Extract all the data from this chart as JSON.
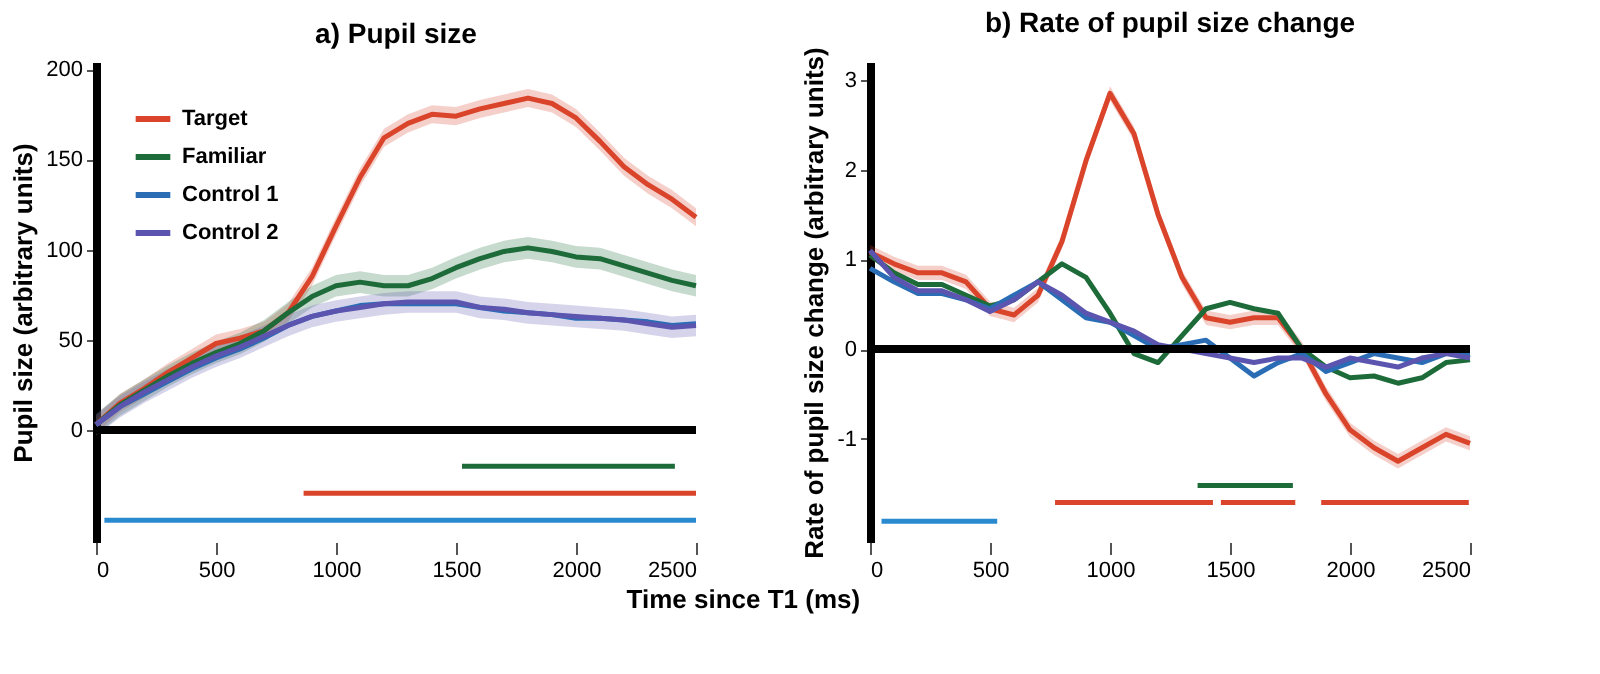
{
  "chart_data": [
    {
      "type": "line",
      "title": "a) Pupil size",
      "xlabel": "Time since T1 (ms)",
      "ylabel": "Pupil size (arbitrary units)",
      "x": [
        0,
        100,
        200,
        300,
        400,
        500,
        600,
        700,
        800,
        900,
        1000,
        1100,
        1200,
        1300,
        1400,
        1500,
        1600,
        1700,
        1800,
        1900,
        2000,
        2100,
        2200,
        2300,
        2400,
        2500
      ],
      "series": [
        {
          "name": "Target",
          "color": "#d9442b",
          "values": [
            3,
            15,
            23,
            32,
            40,
            48,
            51,
            55,
            65,
            85,
            113,
            140,
            162,
            170,
            175,
            174,
            178,
            181,
            184,
            181,
            173,
            160,
            146,
            136,
            128,
            118
          ],
          "lower": [
            -2,
            10,
            18,
            27,
            35,
            43,
            46,
            50,
            60,
            80,
            108,
            135,
            157,
            165,
            170,
            169,
            173,
            176,
            179,
            176,
            168,
            155,
            141,
            131,
            123,
            113
          ],
          "upper": [
            8,
            20,
            28,
            37,
            45,
            53,
            56,
            60,
            70,
            90,
            118,
            145,
            167,
            175,
            180,
            179,
            183,
            186,
            189,
            186,
            178,
            165,
            151,
            141,
            133,
            123
          ]
        },
        {
          "name": "Familiar",
          "color": "#1e6b3a",
          "values": [
            3,
            14,
            22,
            30,
            37,
            43,
            48,
            55,
            65,
            74,
            80,
            82,
            80,
            80,
            84,
            90,
            95,
            99,
            101,
            99,
            96,
            95,
            91,
            87,
            83,
            80
          ],
          "lower": [
            -3,
            8,
            16,
            24,
            31,
            37,
            42,
            49,
            59,
            68,
            74,
            76,
            74,
            74,
            78,
            84,
            89,
            93,
            95,
            93,
            90,
            89,
            85,
            81,
            77,
            74
          ],
          "upper": [
            9,
            20,
            28,
            36,
            43,
            49,
            54,
            61,
            71,
            80,
            86,
            88,
            86,
            86,
            90,
            96,
            101,
            105,
            107,
            105,
            102,
            101,
            97,
            93,
            89,
            86
          ]
        },
        {
          "name": "Control 1",
          "color": "#2a6db5",
          "values": [
            3,
            13,
            20,
            27,
            34,
            40,
            45,
            51,
            58,
            63,
            66,
            69,
            70,
            70,
            70,
            70,
            68,
            66,
            65,
            64,
            62,
            62,
            61,
            60,
            58,
            59
          ]
        },
        {
          "name": "Control 2",
          "color": "#5b55b0",
          "values": [
            3,
            13,
            21,
            28,
            35,
            41,
            46,
            52,
            58,
            63,
            66,
            68,
            70,
            71,
            71,
            71,
            68,
            67,
            65,
            64,
            63,
            62,
            61,
            59,
            57,
            58
          ],
          "lower": [
            -3,
            7,
            15,
            22,
            29,
            35,
            40,
            46,
            52,
            57,
            60,
            62,
            64,
            65,
            65,
            65,
            62,
            61,
            59,
            58,
            57,
            56,
            55,
            53,
            51,
            52
          ],
          "upper": [
            9,
            19,
            27,
            34,
            41,
            47,
            52,
            58,
            64,
            69,
            72,
            74,
            76,
            77,
            77,
            77,
            74,
            73,
            71,
            70,
            69,
            68,
            67,
            65,
            63,
            64
          ]
        },
        {
          "type": "line",
          "color": "#1e6b3a",
          "x": [
            1525,
            2412
          ],
          "values": [
            -20,
            -20
          ]
        },
        {
          "type": "line",
          "color": "#d9442b",
          "x": [
            865,
            2500
          ],
          "values": [
            -35,
            -35
          ]
        },
        {
          "type": "line",
          "color": "#2a8ad0",
          "x": [
            35,
            2500
          ],
          "values": [
            -50,
            -50
          ]
        }
      ],
      "xlim": [
        0,
        2500
      ],
      "xticks": [
        0,
        500,
        1000,
        1500,
        2000,
        2500
      ],
      "ylim": [
        -62,
        204
      ],
      "yticks": [
        0,
        50,
        100,
        150,
        200
      ],
      "ref_lines": [
        {
          "axis": "y",
          "value": 0,
          "color": "#000000"
        }
      ],
      "legend": "top left",
      "grid": false
    },
    {
      "type": "line",
      "title": "b) Rate of pupil size change",
      "ylabel": "Rate of pupil size change (arbitrary units)",
      "x": [
        0,
        100,
        200,
        300,
        400,
        500,
        600,
        700,
        800,
        900,
        1000,
        1100,
        1200,
        1300,
        1400,
        1500,
        1600,
        1700,
        1800,
        1900,
        2000,
        2100,
        2200,
        2300,
        2400,
        2500
      ],
      "series": [
        {
          "color": "#d9442b",
          "values": [
            1.08,
            0.95,
            0.85,
            0.85,
            0.75,
            0.45,
            0.38,
            0.6,
            1.2,
            2.1,
            2.85,
            2.4,
            1.5,
            0.8,
            0.35,
            0.3,
            0.35,
            0.35,
            0.0,
            -0.5,
            -0.9,
            -1.1,
            -1.25,
            -1.1,
            -0.95,
            -1.05
          ],
          "lower": [
            1.0,
            0.87,
            0.77,
            0.77,
            0.67,
            0.37,
            0.3,
            0.52,
            1.12,
            2.02,
            2.77,
            2.32,
            1.42,
            0.72,
            0.27,
            0.22,
            0.27,
            0.27,
            -0.08,
            -0.58,
            -0.98,
            -1.18,
            -1.33,
            -1.18,
            -1.03,
            -1.13
          ],
          "upper": [
            1.16,
            1.03,
            0.93,
            0.93,
            0.83,
            0.53,
            0.46,
            0.68,
            1.28,
            2.18,
            2.93,
            2.48,
            1.58,
            0.88,
            0.43,
            0.38,
            0.43,
            0.43,
            0.08,
            -0.42,
            -0.82,
            -1.02,
            -1.17,
            -1.02,
            -0.87,
            -0.97
          ]
        },
        {
          "color": "#1e6b3a",
          "values": [
            1.05,
            0.85,
            0.72,
            0.72,
            0.6,
            0.48,
            0.55,
            0.75,
            0.95,
            0.8,
            0.4,
            -0.05,
            -0.15,
            0.15,
            0.45,
            0.52,
            0.45,
            0.4,
            0.0,
            -0.2,
            -0.32,
            -0.3,
            -0.38,
            -0.32,
            -0.15,
            -0.12
          ]
        },
        {
          "color": "#2a6db5",
          "values": [
            0.9,
            0.75,
            0.62,
            0.62,
            0.55,
            0.45,
            0.6,
            0.75,
            0.55,
            0.35,
            0.3,
            0.15,
            0.0,
            0.05,
            0.1,
            -0.1,
            -0.3,
            -0.15,
            -0.05,
            -0.25,
            -0.15,
            -0.05,
            -0.1,
            -0.15,
            -0.05,
            -0.05
          ]
        },
        {
          "color": "#5b55b0",
          "values": [
            1.1,
            0.8,
            0.65,
            0.65,
            0.55,
            0.42,
            0.55,
            0.75,
            0.6,
            0.4,
            0.3,
            0.2,
            0.05,
            0.0,
            -0.05,
            -0.1,
            -0.15,
            -0.1,
            -0.1,
            -0.2,
            -0.1,
            -0.15,
            -0.2,
            -0.1,
            -0.05,
            -0.1
          ]
        },
        {
          "type": "line",
          "color": "#1e6b3a",
          "x": [
            1365,
            1762
          ],
          "values": [
            -1.52,
            -1.52
          ]
        },
        {
          "type": "line",
          "color": "#d9442b",
          "x": [
            771,
            1429
          ],
          "values": [
            -1.71,
            -1.71
          ]
        },
        {
          "type": "line",
          "color": "#d9442b",
          "x": [
            1462,
            1772
          ],
          "values": [
            -1.71,
            -1.71
          ]
        },
        {
          "type": "line",
          "color": "#d9442b",
          "x": [
            1880,
            2495
          ],
          "values": [
            -1.71,
            -1.71
          ]
        },
        {
          "type": "line",
          "color": "#2a8ad0",
          "x": [
            48,
            530
          ],
          "values": [
            -1.92,
            -1.92
          ]
        }
      ],
      "xlim": [
        0,
        2500
      ],
      "xticks": [
        0,
        500,
        1000,
        1500,
        2000,
        2500
      ],
      "ylim": [
        -2.15,
        3.2
      ],
      "yticks": [
        -1,
        0,
        1,
        2,
        3
      ],
      "ref_lines": [
        {
          "axis": "y",
          "value": 0,
          "color": "#000000"
        }
      ],
      "grid": false
    }
  ]
}
